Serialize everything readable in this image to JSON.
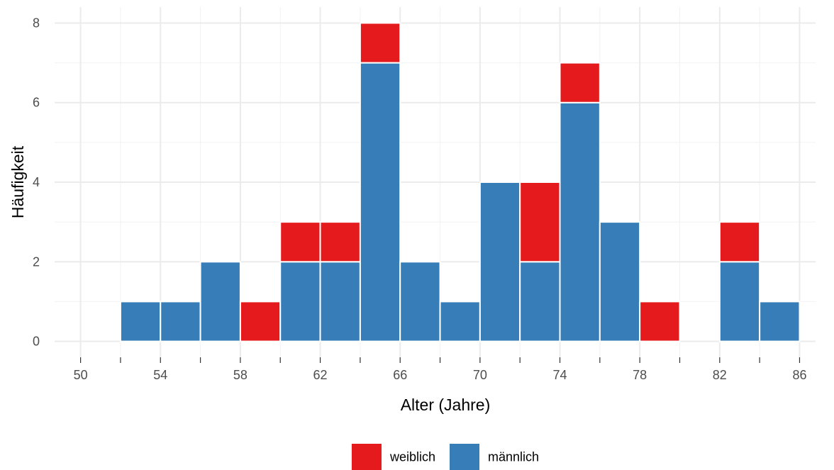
{
  "chart_data": {
    "type": "bar",
    "stacked": true,
    "bin_width": 2,
    "bin_starts": [
      52,
      54,
      56,
      58,
      60,
      62,
      64,
      66,
      68,
      70,
      72,
      74,
      76,
      78,
      80,
      82,
      84
    ],
    "series": [
      {
        "name": "männlich",
        "color": "#377EB8",
        "values": [
          1,
          1,
          2,
          0,
          2,
          2,
          7,
          2,
          1,
          4,
          2,
          6,
          3,
          0,
          0,
          2,
          1
        ]
      },
      {
        "name": "weiblich",
        "color": "#E41A1C",
        "values": [
          0,
          0,
          0,
          1,
          1,
          1,
          1,
          0,
          0,
          0,
          2,
          1,
          0,
          1,
          0,
          1,
          0
        ]
      }
    ],
    "xlabel": "Alter (Jahre)",
    "ylabel": "Häufigkeit",
    "xlim": [
      48.7,
      86.8
    ],
    "ylim": [
      -0.4,
      8.4
    ],
    "x_ticks": [
      50,
      54,
      58,
      62,
      66,
      70,
      74,
      78,
      82,
      86
    ],
    "x_minor_ticks": [
      52,
      56,
      60,
      64,
      68,
      72,
      76,
      80,
      84
    ],
    "y_ticks": [
      0,
      2,
      4,
      6,
      8
    ],
    "y_minor_ticks": [
      1,
      3,
      5,
      7
    ],
    "grid": true,
    "legend": {
      "position": "bottom",
      "order": [
        "weiblich",
        "männlich"
      ]
    }
  }
}
